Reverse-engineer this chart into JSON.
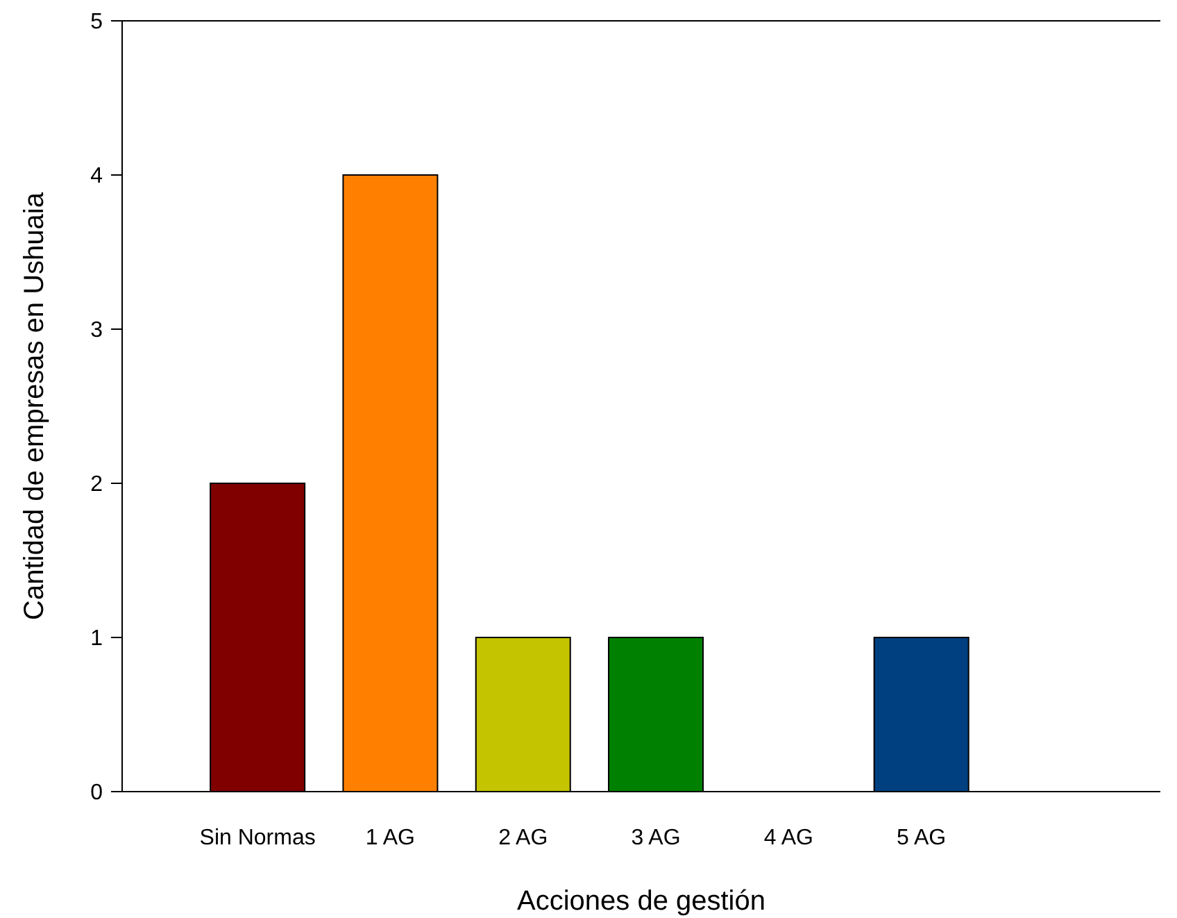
{
  "chart_data": {
    "type": "bar",
    "xlabel": "Acciones de gestión",
    "ylabel": "Cantidad de empresas en Ushuaia",
    "categories": [
      "Sin Normas",
      "1 AG",
      "2 AG",
      "3 AG",
      "4 AG",
      "5 AG"
    ],
    "values": [
      2,
      4,
      1,
      1,
      0,
      1
    ],
    "colors": [
      "#800000",
      "#ff8000",
      "#c4c400",
      "#008000",
      "#808080",
      "#004080"
    ],
    "ylim": [
      0,
      5
    ],
    "yticks": [
      0,
      1,
      2,
      3,
      4,
      5
    ]
  }
}
